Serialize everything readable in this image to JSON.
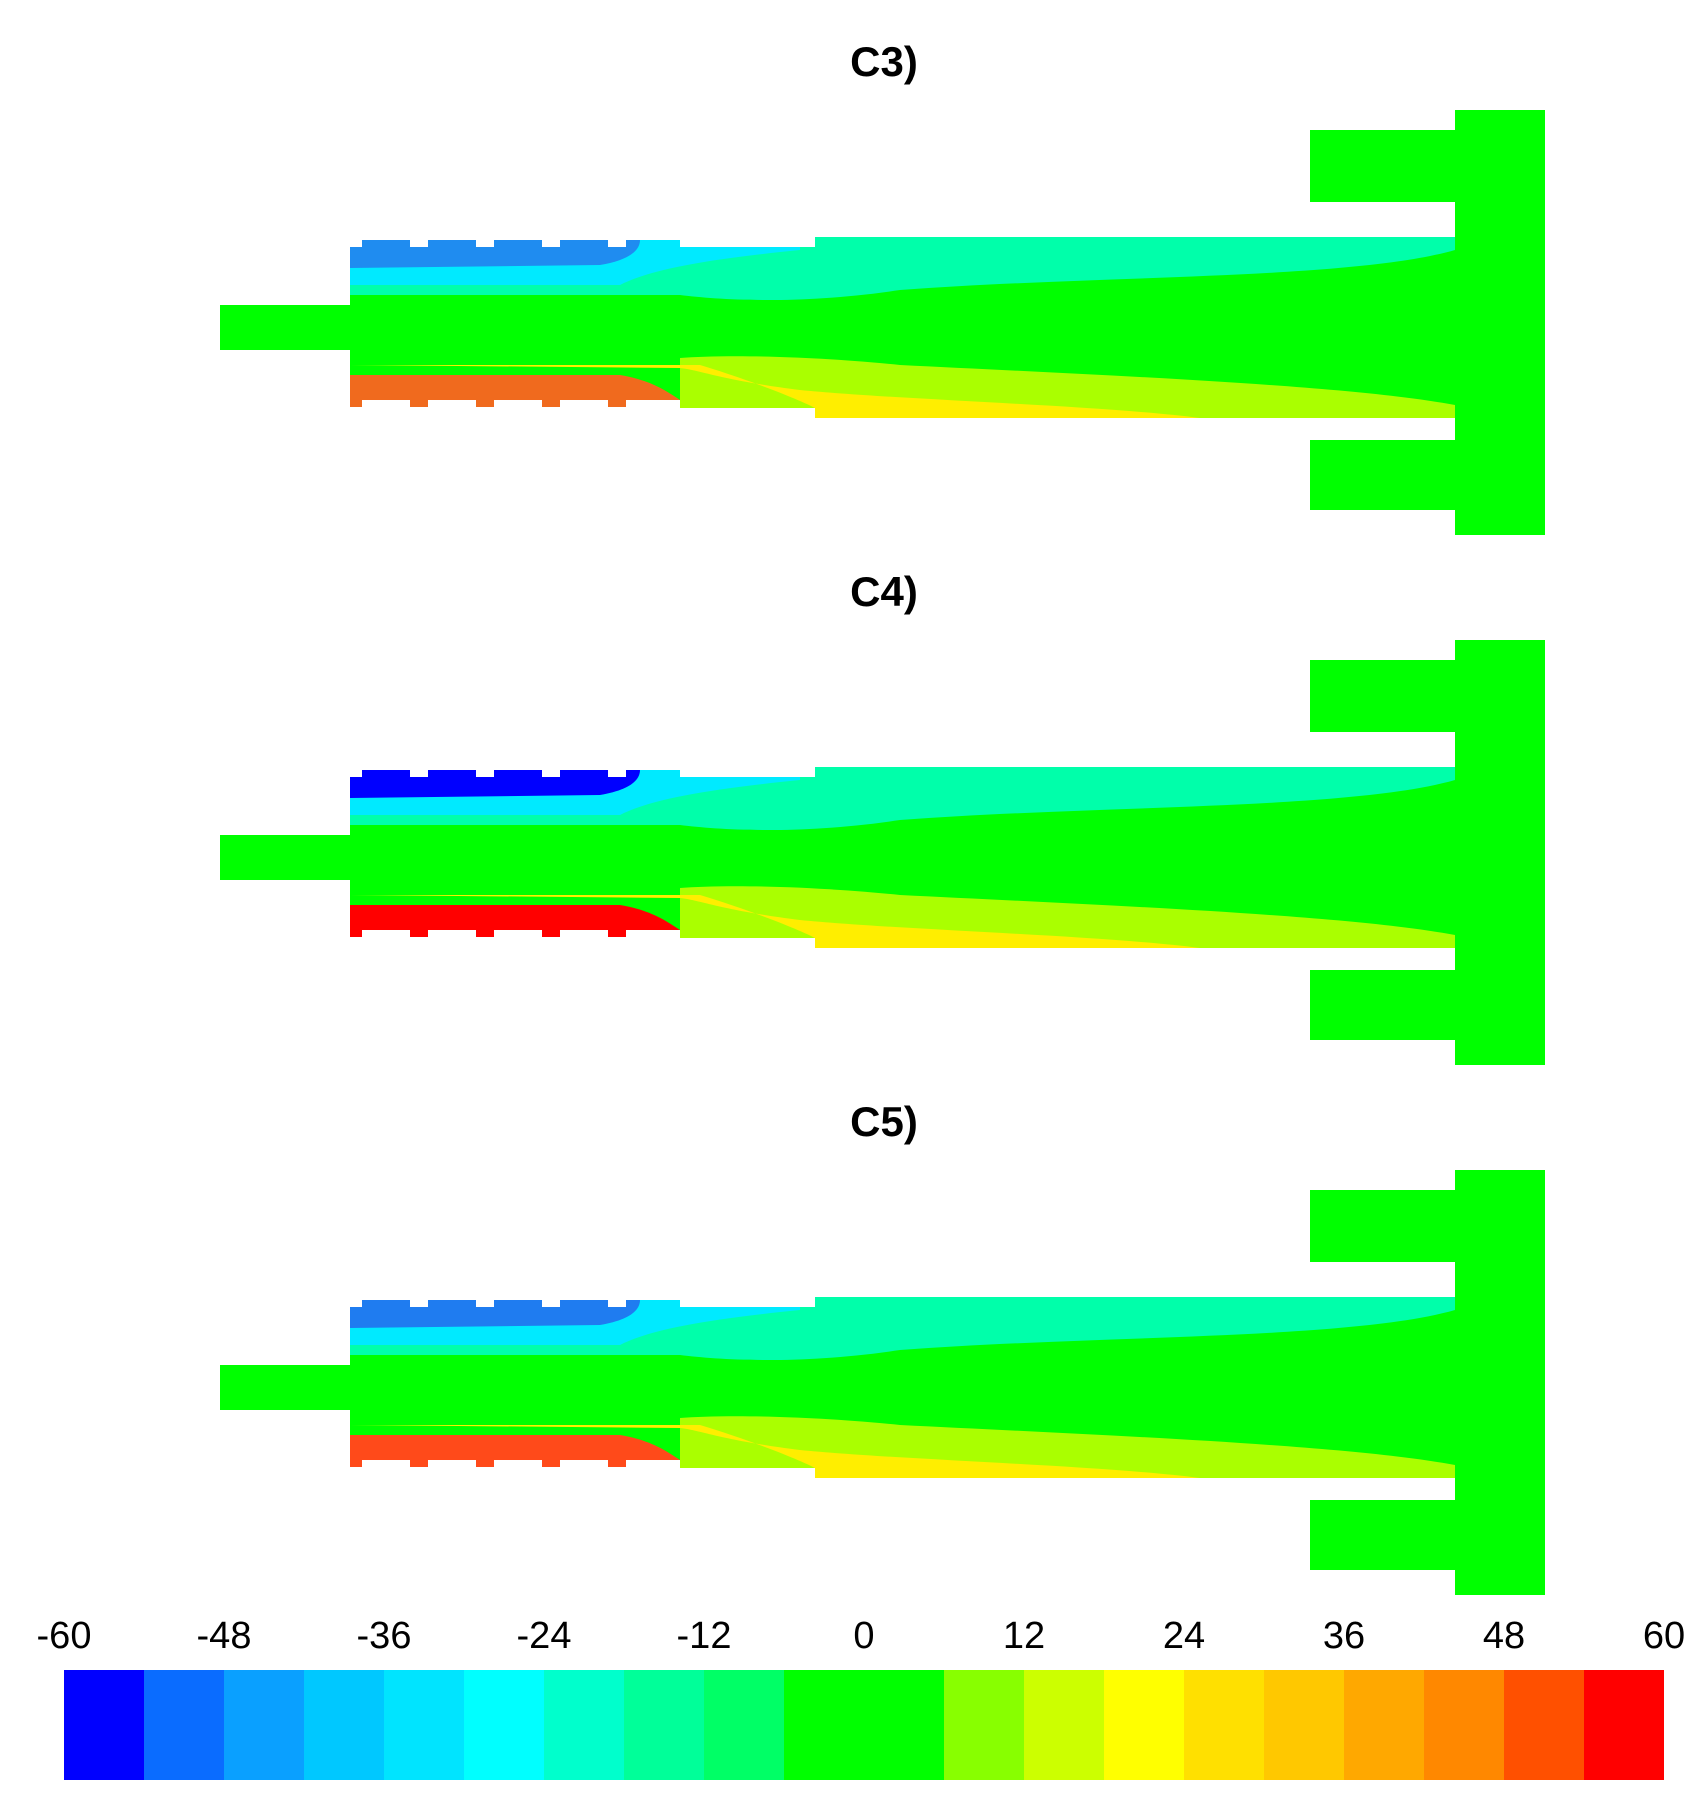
{
  "panels": [
    {
      "id": "c3",
      "title": "C3)",
      "blue": "#1f8cf0",
      "red": "#f06a1e"
    },
    {
      "id": "c4",
      "title": "C4)",
      "blue": "#0000ff",
      "red": "#ff0000"
    },
    {
      "id": "c5",
      "title": "C5)",
      "blue": "#1f7cf0",
      "red": "#ff4a1a"
    }
  ],
  "colorbar": {
    "ticks": [
      "-60",
      "-48",
      "-36",
      "-24",
      "-12",
      "0",
      "12",
      "24",
      "36",
      "48",
      "60"
    ],
    "colors": [
      "#0000ff",
      "#0a6cff",
      "#0aa0ff",
      "#00c8ff",
      "#00e4ff",
      "#00ffff",
      "#00ffcc",
      "#00ff99",
      "#00ff66",
      "#00ff00",
      "#00ff00",
      "#88ff00",
      "#ccff00",
      "#ffff00",
      "#ffe000",
      "#ffc800",
      "#ffa800",
      "#ff8800",
      "#ff5000",
      "#ff0000"
    ]
  }
}
